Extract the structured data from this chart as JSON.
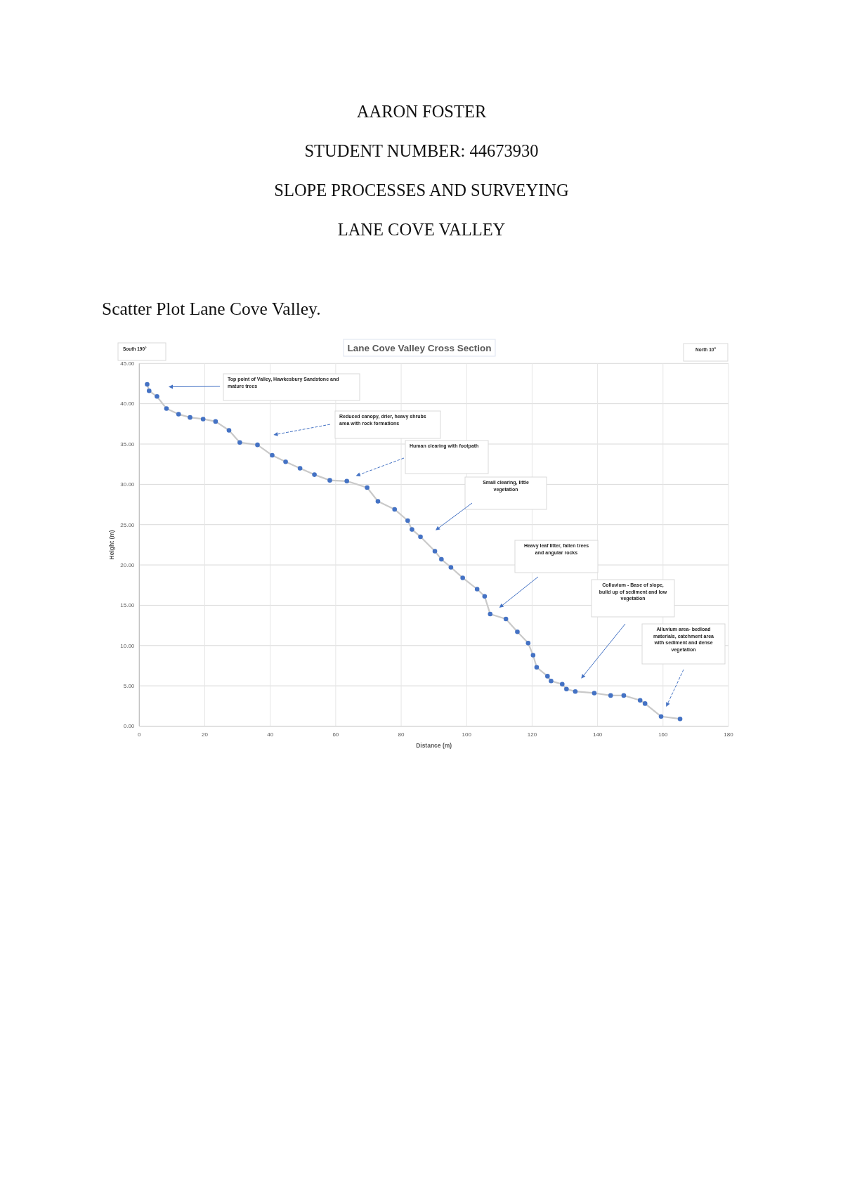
{
  "chart_data": {
    "type": "scatter",
    "title": "Lane Cove Valley Cross Section",
    "xlabel": "Distance (m)",
    "ylabel": "Height (m)",
    "x": [
      2.4,
      3.0,
      5.4,
      8.3,
      12.0,
      15.5,
      19.5,
      23.3,
      27.4,
      30.7,
      36.1,
      40.6,
      44.7,
      49.1,
      53.5,
      58.2,
      63.4,
      69.6,
      72.9,
      78.0,
      82.0,
      83.3,
      85.9,
      90.3,
      92.3,
      95.2,
      98.8,
      103.2,
      105.5,
      107.2,
      112.0,
      115.5,
      118.8,
      120.3,
      121.4,
      124.7,
      125.8,
      129.2,
      130.5,
      133.2,
      139.0,
      144.0,
      148.0,
      153.0,
      154.5,
      159.4,
      165.2
    ],
    "series": [
      {
        "type": "line",
        "color": "#c9c9c9",
        "marker": "none",
        "values": [
          42.4,
          41.6,
          40.9,
          39.4,
          38.7,
          38.3,
          38.1,
          37.8,
          36.7,
          35.2,
          34.9,
          33.6,
          32.8,
          32.0,
          31.2,
          30.5,
          30.4,
          29.6,
          27.9,
          26.9,
          25.5,
          24.4,
          23.5,
          21.7,
          20.7,
          19.7,
          18.4,
          17.0,
          16.1,
          13.9,
          13.3,
          11.7,
          10.3,
          8.8,
          7.3,
          6.2,
          5.6,
          5.2,
          4.6,
          4.3,
          4.1,
          3.8,
          3.8,
          3.2,
          2.8,
          1.2,
          0.9
        ]
      },
      {
        "color": "#4472c4",
        "marker": "circle",
        "values": [
          42.4,
          41.6,
          40.9,
          39.4,
          38.7,
          38.3,
          38.1,
          37.8,
          36.7,
          35.2,
          34.9,
          33.6,
          32.8,
          32.0,
          31.2,
          30.5,
          30.4,
          29.6,
          27.9,
          26.9,
          25.5,
          24.4,
          23.5,
          21.7,
          20.7,
          19.7,
          18.4,
          17.0,
          16.1,
          13.9,
          13.3,
          11.7,
          10.3,
          8.8,
          7.3,
          6.2,
          5.6,
          5.2,
          4.6,
          4.3,
          4.1,
          3.8,
          3.8,
          3.2,
          2.8,
          1.2,
          0.9
        ]
      }
    ],
    "xlim": [
      0,
      180
    ],
    "ylim": [
      0,
      45
    ],
    "xticks": [
      0,
      20,
      40,
      60,
      80,
      100,
      120,
      140,
      160,
      180
    ],
    "yticks": [
      {
        "value": 0,
        "label": "0.00"
      },
      {
        "value": 5,
        "label": "5.00"
      },
      {
        "value": 10,
        "label": "10.00"
      },
      {
        "value": 15,
        "label": "15.00"
      },
      {
        "value": 20,
        "label": "20.00"
      },
      {
        "value": 25,
        "label": "25.00"
      },
      {
        "value": 30,
        "label": "30.00"
      },
      {
        "value": 35,
        "label": "35.00"
      },
      {
        "value": 40,
        "label": "40.00"
      },
      {
        "value": 45,
        "label": "45.00"
      }
    ],
    "grid": true,
    "annotations": [
      "AARON FOSTER",
      "STUDENT NUMBER: 44673930",
      "SLOPE PROCESSES AND SURVEYING",
      "LANE COVE VALLEY",
      "Scatter Plot Lane Cove Valley.",
      "South 190°",
      "North 10°",
      "Top point of Valley, Hawkesbury Sandstone and mature trees",
      "Reduced canopy, drier, heavy shrubs area with rock formations",
      "Human clearing with footpath",
      "Small clearing, little vegetation",
      "Heavy leaf litter, fallen trees and angular rocks",
      "Colluvium - Base of slope, build up of sediment and low vegetation",
      "Alluvium area- bedload materials, catchment area with sediment and dense vegetation"
    ]
  }
}
